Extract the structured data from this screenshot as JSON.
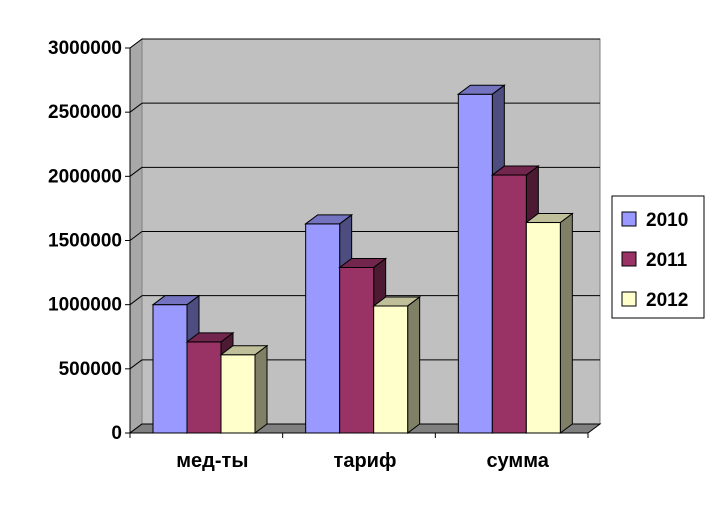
{
  "chart_data": {
    "type": "bar",
    "categories": [
      "мед-ты",
      "тариф",
      "сумма"
    ],
    "series": [
      {
        "name": "2010",
        "values": [
          1000000,
          1630000,
          2640000
        ],
        "color": "#9999ff"
      },
      {
        "name": "2011",
        "values": [
          710000,
          1290000,
          2010000
        ],
        "color": "#993366"
      },
      {
        "name": "2012",
        "values": [
          610000,
          990000,
          1640000
        ],
        "color": "#ffffcc"
      }
    ],
    "yticks": [
      "0",
      "500000",
      "1000000",
      "1500000",
      "2000000",
      "2500000",
      "3000000"
    ],
    "ylim": [
      0,
      3000000
    ],
    "grid": true,
    "legend_position": "right",
    "wall_color": "#c0c0c0",
    "floor_color": "#808080"
  }
}
